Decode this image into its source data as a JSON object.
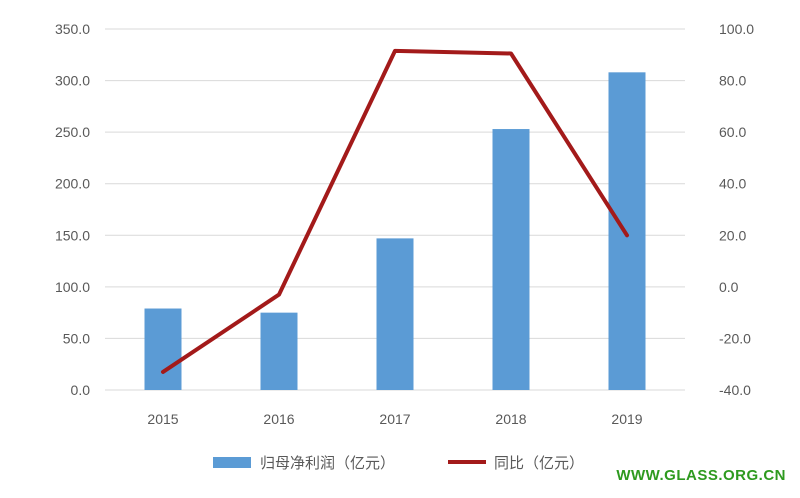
{
  "chart_data": {
    "type": "bar",
    "categories": [
      "2015",
      "2016",
      "2017",
      "2018",
      "2019"
    ],
    "series": [
      {
        "name": "归母净利润（亿元）",
        "type": "bar",
        "axis": "left",
        "color": "#5b9bd5",
        "values": [
          79.0,
          75.0,
          147.0,
          253.0,
          308.0
        ]
      },
      {
        "name": "同比（亿元）",
        "type": "line",
        "axis": "right",
        "color": "#a31a1a",
        "values": [
          -33.0,
          -3.0,
          91.5,
          90.5,
          20.0
        ]
      }
    ],
    "y_left": {
      "lim": [
        0,
        350
      ],
      "ticks": [
        "0.0",
        "50.0",
        "100.0",
        "150.0",
        "200.0",
        "250.0",
        "300.0",
        "350.0"
      ]
    },
    "y_right": {
      "lim": [
        -40,
        100
      ],
      "ticks": [
        "-40.0",
        "-20.0",
        "0.0",
        "20.0",
        "40.0",
        "60.0",
        "80.0",
        "100.0"
      ]
    },
    "grid": true,
    "legend_position": "bottom"
  },
  "watermark": "WWW.GLASS.ORG.CN"
}
